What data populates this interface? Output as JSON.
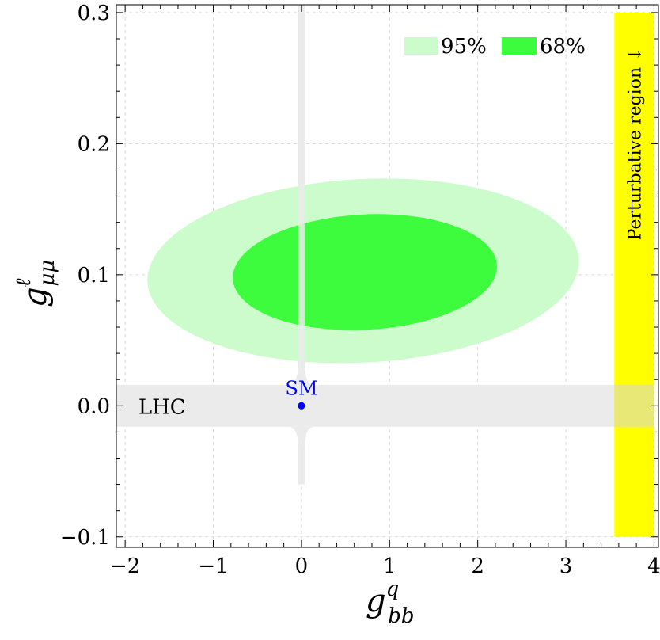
{
  "chart_data": {
    "type": "contour",
    "xlim": [
      -2.1,
      4.05
    ],
    "ylim": [
      -0.108,
      0.306
    ],
    "xticks": [
      -2,
      -1,
      0,
      1,
      2,
      3,
      4
    ],
    "yticks": [
      -0.1,
      0.0,
      0.1,
      0.2,
      0.3
    ],
    "xtick_labels": [
      "−2",
      "−1",
      "0",
      "1",
      "2",
      "3",
      "4"
    ],
    "ytick_labels": [
      "−0.1",
      "0.0",
      "0.1",
      "0.2",
      "0.3"
    ],
    "grid": true,
    "xlabel": {
      "base": "g",
      "sup": "q",
      "sub": "bb"
    },
    "ylabel": {
      "base": "g",
      "sup": "ℓ",
      "sub": "μμ"
    },
    "legend": {
      "position": "top-right",
      "entries": [
        {
          "label": "95%",
          "color": "#ccfccc"
        },
        {
          "label": "68%",
          "color": "#3dfc3d"
        }
      ]
    },
    "regions": {
      "ellipse_95": {
        "label": "95%",
        "center": [
          0.7,
          0.103
        ],
        "semi_axes": [
          2.45,
          0.07
        ],
        "color": "#ccfccc"
      },
      "ellipse_68": {
        "label": "68%",
        "center": [
          0.72,
          0.102
        ],
        "semi_axes": [
          1.5,
          0.044
        ],
        "color": "#3dfc3d"
      },
      "lhc_band": {
        "label": "LHC",
        "x_range": [
          -2.1,
          4.0
        ],
        "y_range": [
          -0.016,
          0.016
        ],
        "color": "#ebebeb"
      },
      "lhc_vertical": {
        "x": 0.0,
        "y_range": [
          -0.06,
          0.306
        ],
        "color": "#ebebeb"
      },
      "perturbative": {
        "label": "Perturbative region ↓",
        "x_range": [
          3.55,
          4.0
        ],
        "y_range": [
          -0.1,
          0.3
        ],
        "color": "#ffff00"
      }
    },
    "points": [
      {
        "label": "SM",
        "x": 0.0,
        "y": 0.0,
        "color": "#0000ff"
      }
    ]
  }
}
